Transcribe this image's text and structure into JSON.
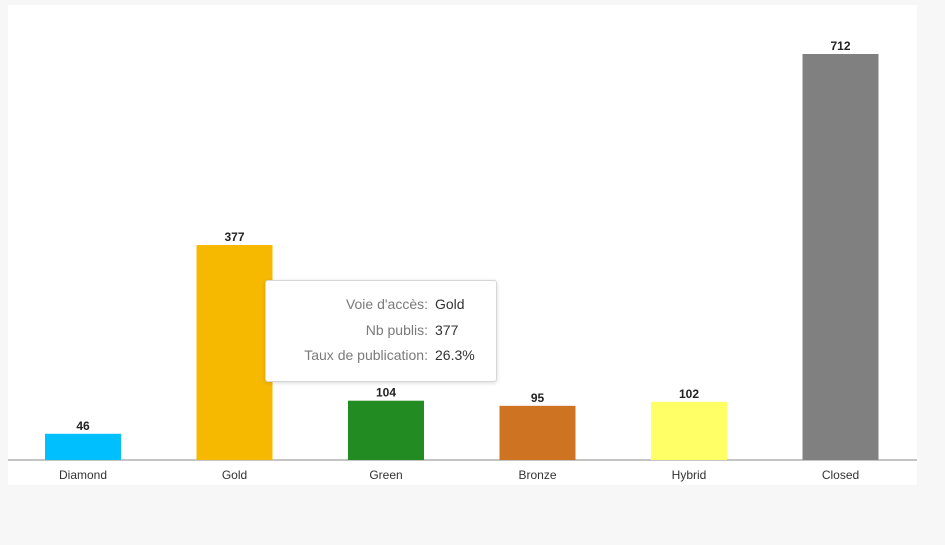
{
  "chart_data": {
    "type": "bar",
    "categories": [
      "Diamond",
      "Gold",
      "Green",
      "Bronze",
      "Hybrid",
      "Closed"
    ],
    "values": [
      46,
      377,
      104,
      95,
      102,
      712
    ],
    "colors": [
      "#00bfff",
      "#f7b900",
      "#228b22",
      "#cd7321",
      "#ffff66",
      "#808080"
    ],
    "title": "",
    "xlabel": "",
    "ylabel": "",
    "ylim": [
      0,
      712
    ],
    "grid": false,
    "data_labels": true
  },
  "tooltip": {
    "rows": [
      {
        "key": "Voie d'accès:",
        "value": "Gold"
      },
      {
        "key": "Nb publis:",
        "value": "377"
      },
      {
        "key": "Taux de publication:",
        "value": "26.3%"
      }
    ]
  }
}
